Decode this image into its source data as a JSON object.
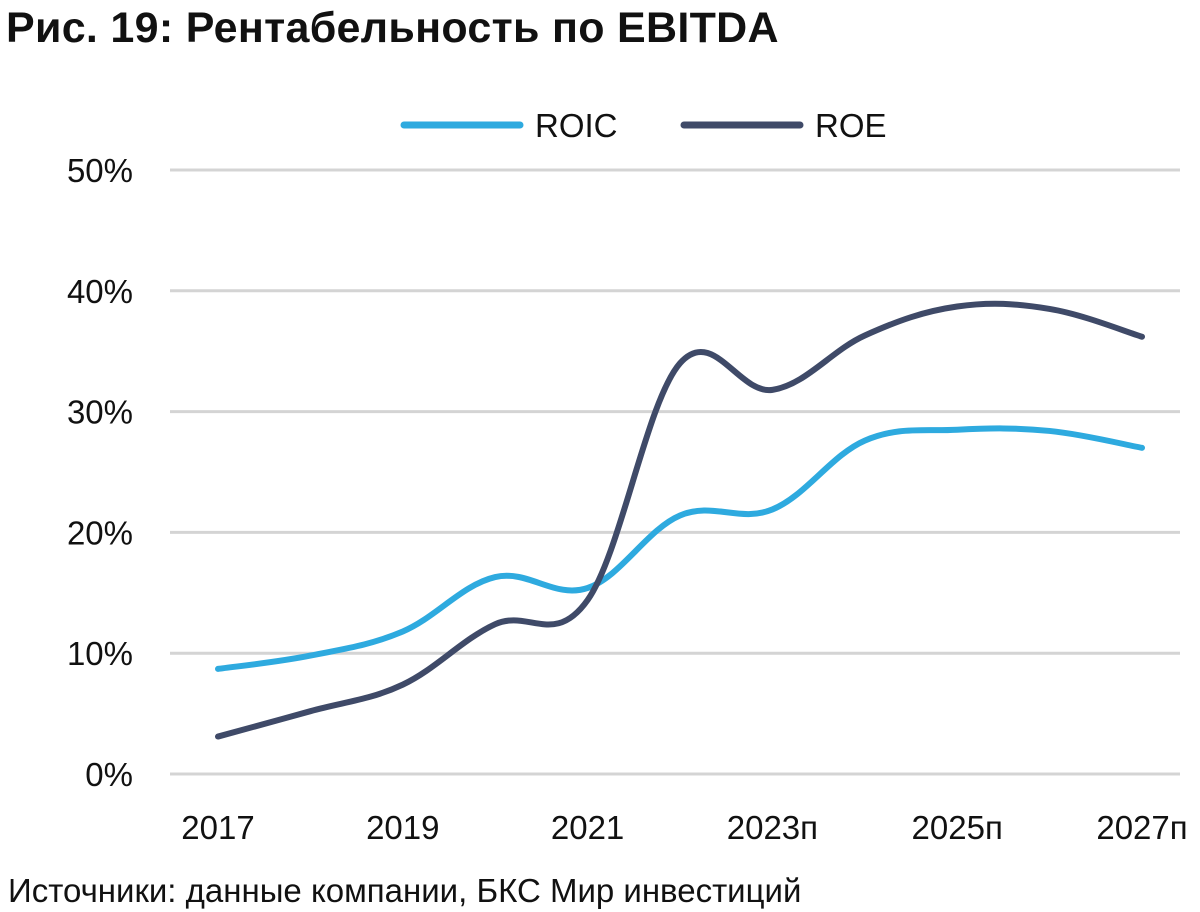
{
  "title": "Рис. 19: Рентабельность по EBITDA",
  "source": "Источники: данные компании, БКС Мир инвестиций",
  "chart_data": {
    "type": "line",
    "x": [
      "2017",
      "2018",
      "2019",
      "2020",
      "2021",
      "2022",
      "2023п",
      "2024п",
      "2025п",
      "2026п",
      "2027п"
    ],
    "x_tick_labels": [
      "2017",
      "2019",
      "2021",
      "2023п",
      "2025п",
      "2027п"
    ],
    "y_tick_labels": [
      "0%",
      "10%",
      "20%",
      "30%",
      "40%",
      "50%"
    ],
    "ylim": [
      0,
      50
    ],
    "y_unit": "%",
    "grid": "horizontal",
    "legend_position": "top",
    "series": [
      {
        "name": "ROIC",
        "color": "#2eaadf",
        "values": [
          8.7,
          9.8,
          11.8,
          16.3,
          15.4,
          21.4,
          21.9,
          27.6,
          28.5,
          28.4,
          27.0
        ]
      },
      {
        "name": "ROE",
        "color": "#3f4a68",
        "values": [
          3.1,
          5.2,
          7.4,
          12.4,
          14.4,
          34.0,
          31.8,
          36.3,
          38.7,
          38.5,
          36.2
        ]
      }
    ]
  }
}
